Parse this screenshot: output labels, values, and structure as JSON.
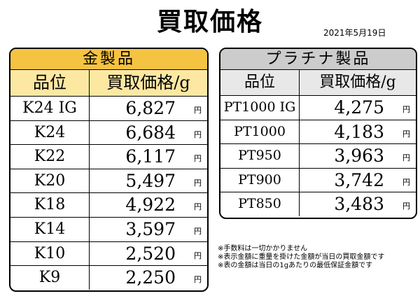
{
  "title": "買取価格",
  "date": "2021年5月19日",
  "gold": {
    "header": "金製品",
    "col_grade": "品位",
    "col_price": "買取価格/g",
    "rows": [
      {
        "grade": "K24 IG",
        "price": "6,827",
        "unit": "円"
      },
      {
        "grade": "K24",
        "price": "6,684",
        "unit": "円"
      },
      {
        "grade": "K22",
        "price": "6,117",
        "unit": "円"
      },
      {
        "grade": "K20",
        "price": "5,497",
        "unit": "円"
      },
      {
        "grade": "K18",
        "price": "4,922",
        "unit": "円"
      },
      {
        "grade": "K14",
        "price": "3,597",
        "unit": "円"
      },
      {
        "grade": "K10",
        "price": "2,520",
        "unit": "円"
      },
      {
        "grade": "K9",
        "price": "2,250",
        "unit": "円"
      }
    ]
  },
  "platinum": {
    "header": "プラチナ製品",
    "col_grade": "品位",
    "col_price": "買取価格/g",
    "rows": [
      {
        "grade": "PT1000 IG",
        "price": "4,275",
        "unit": "円"
      },
      {
        "grade": "PT1000",
        "price": "4,183",
        "unit": "円"
      },
      {
        "grade": "PT950",
        "price": "3,963",
        "unit": "円"
      },
      {
        "grade": "PT900",
        "price": "3,742",
        "unit": "円"
      },
      {
        "grade": "PT850",
        "price": "3,483",
        "unit": "円"
      }
    ]
  },
  "notes": [
    "※手数料は一切かかりません",
    "※表示金額に重量を掛けた金額が当日の買取金額です",
    "※表の金額は当日の1gあたりの最低保証金額です"
  ]
}
